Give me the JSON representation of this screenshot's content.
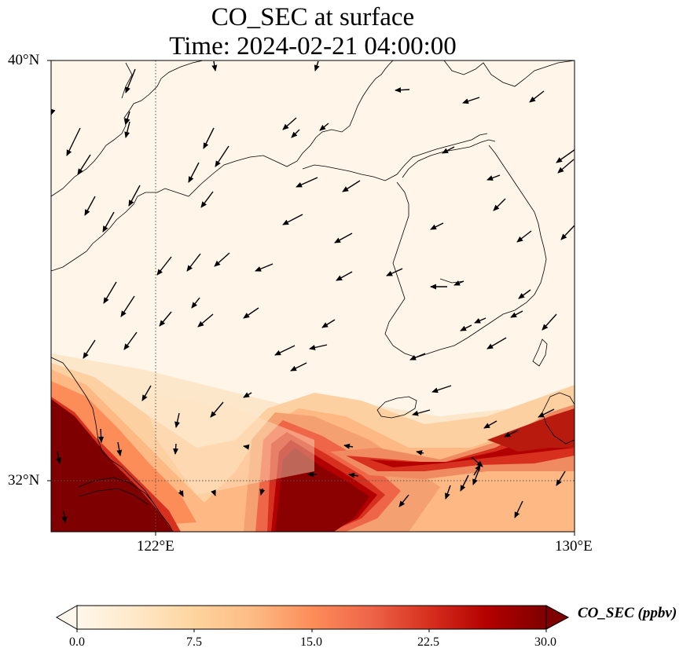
{
  "title": {
    "line1": "CO_SEC at surface",
    "line2": "Time: 2024-02-21 04:00:00"
  },
  "map": {
    "extent": {
      "lon_min": 120,
      "lon_max": 130,
      "lat_min": 31,
      "lat_max": 40
    },
    "lat_ticks": [
      {
        "value": 40,
        "label": "40°N"
      },
      {
        "value": 32,
        "label": "32°N"
      }
    ],
    "lon_ticks": [
      {
        "value": 122,
        "label": "122°E"
      },
      {
        "value": 130,
        "label": "130°E"
      }
    ],
    "reference_lines": {
      "lon": 122,
      "lat": 32,
      "style": "dotted"
    },
    "field": {
      "variable": "CO_SEC",
      "level": "surface",
      "units": "ppbv",
      "background": "low values over the Bohai Sea, Yellow Sea and Korean Peninsula",
      "high_value_zones": [
        "Yangtze River Delta (southwest corner) near 30",
        "plume over East China Sea south of 32.8°N, peak near 124–126°E",
        "band along 32–33°N toward southern Japan (128–130°E)"
      ]
    },
    "wind_vectors": "dominantly northwesterly and westerly flow; southerly vectors near 32°N east of 127°E"
  },
  "colorbar": {
    "label": "CO_SEC (ppbv)",
    "min": 0.0,
    "max": 30.0,
    "extend": "both",
    "ticks": [
      "0.0",
      "7.5",
      "15.0",
      "22.5",
      "30.0"
    ],
    "colormap": "OrRd",
    "colors": [
      "#fff7ec",
      "#fee8c8",
      "#fdd49e",
      "#fdbb84",
      "#fc8d59",
      "#ef6548",
      "#d7301f",
      "#b30000",
      "#7f0000"
    ]
  }
}
